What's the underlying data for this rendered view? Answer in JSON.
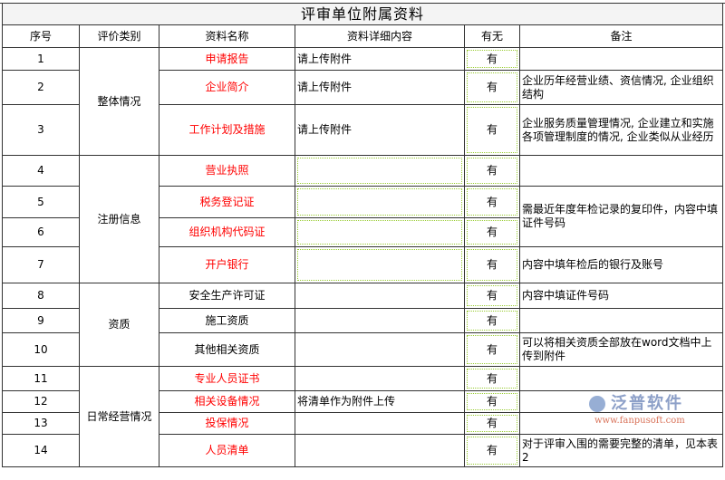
{
  "title": "评审单位附属资料",
  "headers": [
    "序号",
    "评价类别",
    "资料名称",
    "资料详细内容",
    "有无",
    "备注"
  ],
  "colors": {
    "required_name": "#ff0000",
    "dotted_border": "#99cc33",
    "title_bg": "#f4f4f4"
  },
  "categories": [
    "整体情况",
    "注册信息",
    "资质",
    "日常经营情况"
  ],
  "rows": [
    {
      "no": "1",
      "name": "申请报告",
      "detail": "请上传附件",
      "has": "有",
      "remark": ""
    },
    {
      "no": "2",
      "name": "企业简介",
      "detail": "请上传附件",
      "has": "有",
      "remark": "企业历年经营业绩、资信情况, 企业组织结构"
    },
    {
      "no": "3",
      "name": "工作计划及措施",
      "detail": "请上传附件",
      "has": "有",
      "remark": "企业服务质量管理情况, 企业建立和实施各项管理制度的情况, 企业类似从业经历"
    },
    {
      "no": "4",
      "name": "营业执照",
      "detail": "",
      "has": "有",
      "remark": ""
    },
    {
      "no": "5",
      "name": "税务登记证",
      "detail": "",
      "has": "有",
      "remark": "需最近年度年检记录的复印件，内容中填证件号码"
    },
    {
      "no": "6",
      "name": "组织机构代码证",
      "detail": "",
      "has": "有"
    },
    {
      "no": "7",
      "name": "开户银行",
      "detail": "",
      "has": "有",
      "remark": "内容中填年检后的银行及账号"
    },
    {
      "no": "8",
      "name": "安全生产许可证",
      "detail": "",
      "has": "有",
      "remark": "内容中填证件号码"
    },
    {
      "no": "9",
      "name": "施工资质",
      "detail": "",
      "has": "有",
      "remark": ""
    },
    {
      "no": "10",
      "name": "其他相关资质",
      "detail": "",
      "has": "有",
      "remark": "可以将相关资质全部放在word文档中上传到附件"
    },
    {
      "no": "11",
      "name": "专业人员证书",
      "detail": "",
      "has": "有",
      "remark": ""
    },
    {
      "no": "12",
      "name": "相关设备情况",
      "detail": "将清单作为附件上传",
      "has": "有",
      "remark": ""
    },
    {
      "no": "13",
      "name": "投保情况",
      "detail": "",
      "has": "有",
      "remark": ""
    },
    {
      "no": "14",
      "name": "人员清单",
      "detail": "",
      "has": "有",
      "remark": "对于评审入围的需要完整的清单，见本表2"
    }
  ],
  "watermark": {
    "brand": "泛普软件",
    "url": "www.fanpusoft.com"
  }
}
